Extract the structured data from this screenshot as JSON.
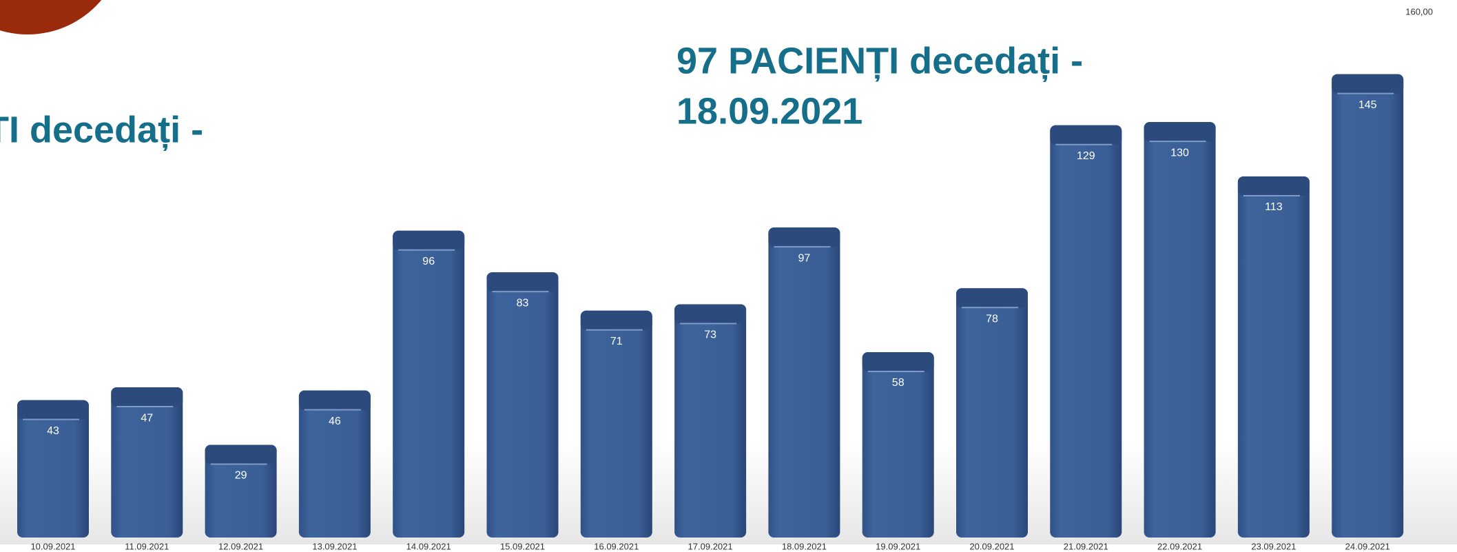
{
  "chart_data": {
    "type": "bar",
    "title_lines": [
      "97 PACIENȚI decedați -",
      "18.09.2021"
    ],
    "annotation": "ȚI decedați -",
    "categories": [
      "10.09.2021",
      "11.09.2021",
      "12.09.2021",
      "13.09.2021",
      "14.09.2021",
      "15.09.2021",
      "16.09.2021",
      "17.09.2021",
      "18.09.2021",
      "19.09.2021",
      "20.09.2021",
      "21.09.2021",
      "22.09.2021",
      "23.09.2021",
      "24.09.2021"
    ],
    "values": [
      43,
      47,
      29,
      46,
      96,
      83,
      71,
      73,
      97,
      58,
      78,
      129,
      130,
      113,
      145
    ],
    "color": "#3a5f96",
    "ylim": [
      0,
      160
    ],
    "yticks": [
      {
        "value": 160,
        "label": "160,00"
      }
    ]
  }
}
